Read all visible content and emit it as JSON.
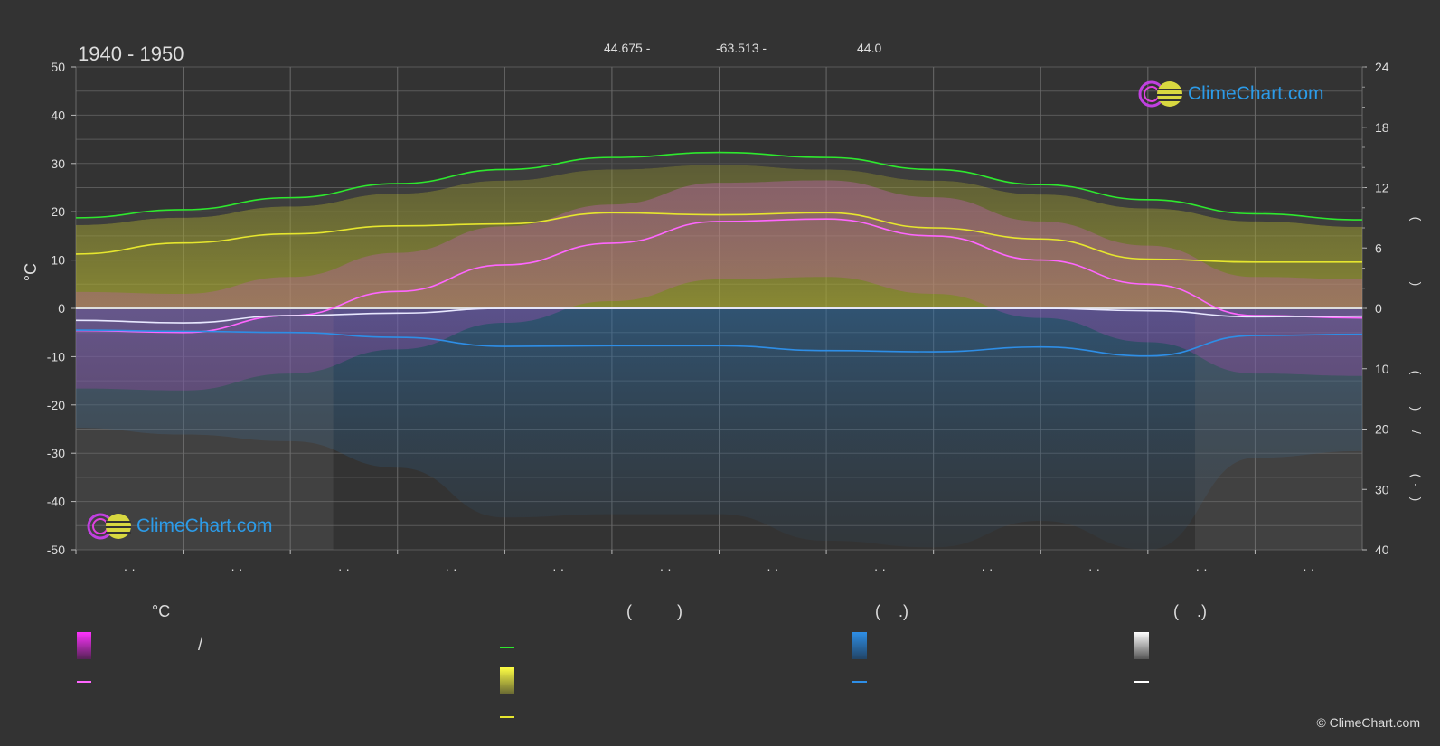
{
  "title": "1940 - 1950",
  "coords": {
    "lat": "44.675 -",
    "lon": "-63.513 -",
    "elev": "44.0"
  },
  "logo_text": "ClimeChart.com",
  "copyright": "© ClimeChart.com",
  "left_axis_label": "°C",
  "right_axis_symbols": [
    "(",
    ")",
    "(",
    ")",
    "/",
    "(",
    "·",
    ")"
  ],
  "month_labels": [
    "· ·",
    "· ·",
    "· ·",
    "· ·",
    "· ·",
    "· ·",
    "· ·",
    "· ·",
    "· ·",
    "· ·",
    "· ·",
    "· ·"
  ],
  "legend": {
    "col1_head": "°C",
    "col1_slash": "/",
    "col2_head": "(          )",
    "col3_head": "(    .)",
    "col4_head": "(    .)"
  },
  "colors": {
    "background": "#333333",
    "grid": "#555555",
    "daylight": "#2ee82e",
    "sunshine": "#e6e62e",
    "temp_avg": "#ff66ff",
    "temp_range": "#e02ee0",
    "precipitation": "#2e8ee6",
    "snow": "#dddddd"
  },
  "chart_data": {
    "type": "line",
    "title": "1940 - 1950",
    "ylabel": "°C",
    "ylim": [
      -50,
      50
    ],
    "y2_sunshine_lim": [
      0,
      24
    ],
    "y2_precip_lim": [
      0,
      40
    ],
    "yticks": [
      50,
      40,
      30,
      20,
      10,
      0,
      -10,
      -20,
      -30,
      -40,
      -50
    ],
    "y2ticks_top": [
      24,
      18,
      12,
      6,
      0
    ],
    "y2ticks_bottom": [
      0,
      10,
      20,
      30,
      40
    ],
    "x": [
      0,
      1,
      2,
      3,
      4,
      5,
      6,
      7,
      8,
      9,
      10,
      11,
      12
    ],
    "series": [
      {
        "key": "daylight",
        "values": [
          9.0,
          9.8,
          11.0,
          12.4,
          13.8,
          15.0,
          15.5,
          15.0,
          13.8,
          12.3,
          10.8,
          9.4,
          8.8
        ],
        "axis": "y2_sunshine"
      },
      {
        "key": "sunshine",
        "values": [
          5.4,
          6.5,
          7.4,
          8.2,
          8.4,
          9.5,
          9.3,
          9.5,
          8.0,
          6.9,
          4.9,
          4.6,
          4.6
        ],
        "axis": "y2_sunshine"
      },
      {
        "key": "temp_avg",
        "values": [
          -4.6,
          -5.0,
          -1.5,
          3.5,
          9.0,
          13.5,
          18.0,
          18.5,
          15.0,
          10.0,
          5.0,
          -1.5,
          -2.0
        ],
        "axis": "y"
      },
      {
        "key": "precipitation",
        "values": [
          3.6,
          3.8,
          4.0,
          4.8,
          6.3,
          6.2,
          6.2,
          7.0,
          7.2,
          6.4,
          7.9,
          4.5,
          4.3
        ],
        "axis": "y2_precip"
      },
      {
        "key": "snow",
        "values": [
          2.0,
          2.4,
          1.2,
          0.8,
          0.0,
          0.0,
          0.0,
          0.0,
          0.0,
          0.0,
          0.4,
          1.4,
          1.3
        ],
        "axis": "y2_precip"
      }
    ]
  }
}
